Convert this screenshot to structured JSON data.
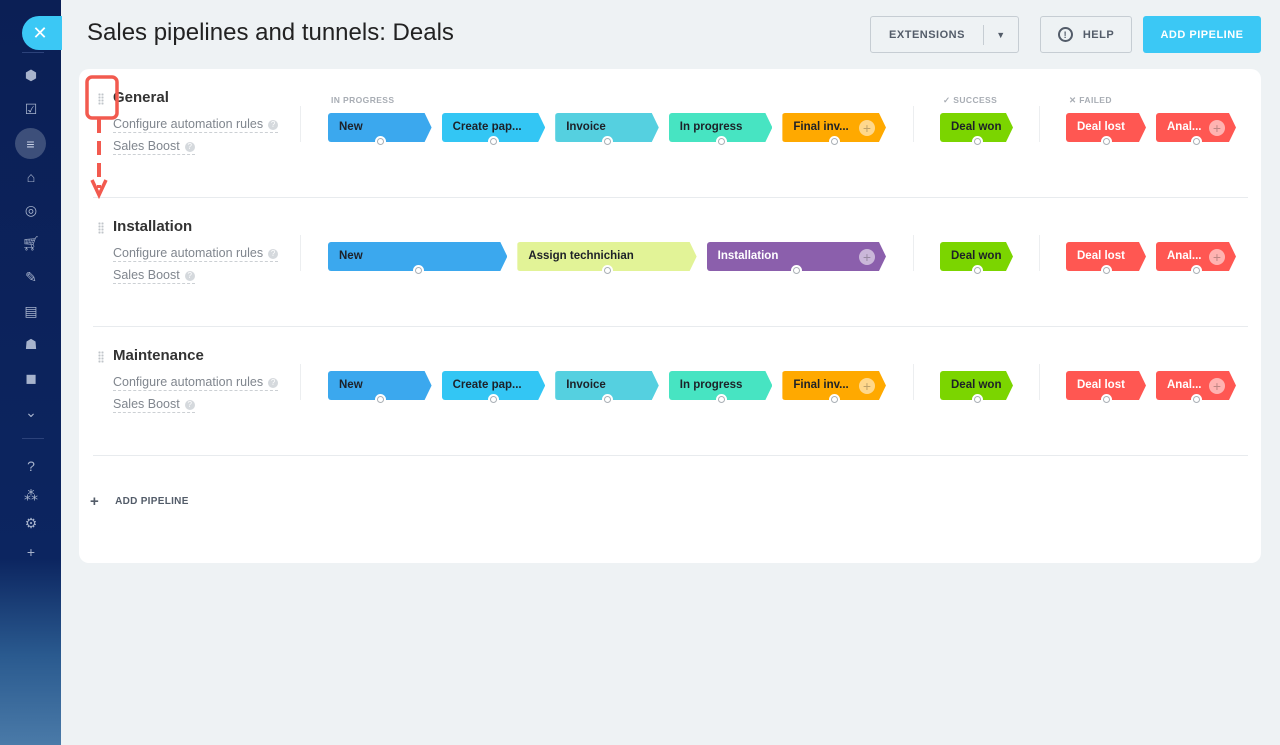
{
  "sidebar": {
    "close_icon": "close-icon",
    "items": [
      "pipeline-icon",
      "tasks-icon",
      "filter-icon",
      "warehouse-icon",
      "target-icon",
      "cart-icon",
      "signature-icon",
      "contact-card-icon",
      "robot-icon",
      "box-icon",
      "more-chevron-icon",
      "help-icon",
      "sitemap-icon",
      "settings-icon",
      "plus-icon"
    ]
  },
  "header": {
    "title": "Sales pipelines and tunnels: Deals",
    "extensions_label": "EXTENSIONS",
    "help_label": "HELP",
    "add_pipeline_label": "ADD PIPELINE"
  },
  "groups": {
    "in_progress": "IN PROGRESS",
    "success": "SUCCESS",
    "failed": "FAILED"
  },
  "pipelines": [
    {
      "name": "General",
      "automation": "Configure automation rules",
      "boost": "Sales Boost",
      "stages": [
        {
          "label": "New",
          "color": "#3ba8ee"
        },
        {
          "label": "Create pap...",
          "color": "#33c6f4"
        },
        {
          "label": "Invoice",
          "color": "#55d0e0"
        },
        {
          "label": "In progress",
          "color": "#47e4c2"
        },
        {
          "label": "Final inv...",
          "color": "#ffa900"
        }
      ],
      "success": {
        "label": "Deal won",
        "color": "#7bd500"
      },
      "failed": [
        {
          "label": "Deal lost",
          "color": "#ff5752"
        },
        {
          "label": "Anal...",
          "color": "#ff5752"
        }
      ]
    },
    {
      "name": "Installation",
      "automation": "Configure automation rules",
      "boost": "Sales Boost",
      "stages": [
        {
          "label": "New",
          "color": "#3ba8ee"
        },
        {
          "label": "Assign technichian",
          "color": "#e2f397"
        },
        {
          "label": "Installation",
          "color": "#8b5fac",
          "light": true
        }
      ],
      "success": {
        "label": "Deal won",
        "color": "#7bd500"
      },
      "failed": [
        {
          "label": "Deal lost",
          "color": "#ff5752"
        },
        {
          "label": "Anal...",
          "color": "#ff5752"
        }
      ]
    },
    {
      "name": "Maintenance",
      "automation": "Configure automation rules",
      "boost": "Sales Boost",
      "stages": [
        {
          "label": "New",
          "color": "#3ba8ee"
        },
        {
          "label": "Create pap...",
          "color": "#33c6f4"
        },
        {
          "label": "Invoice",
          "color": "#55d0e0"
        },
        {
          "label": "In progress",
          "color": "#47e4c2"
        },
        {
          "label": "Final inv...",
          "color": "#ffa900"
        }
      ],
      "success": {
        "label": "Deal won",
        "color": "#7bd500"
      },
      "failed": [
        {
          "label": "Deal lost",
          "color": "#ff5752"
        },
        {
          "label": "Anal...",
          "color": "#ff5752"
        }
      ]
    }
  ],
  "footer": {
    "add_pipeline_label": "ADD PIPELINE"
  },
  "annotation_color": "#f25a4f"
}
